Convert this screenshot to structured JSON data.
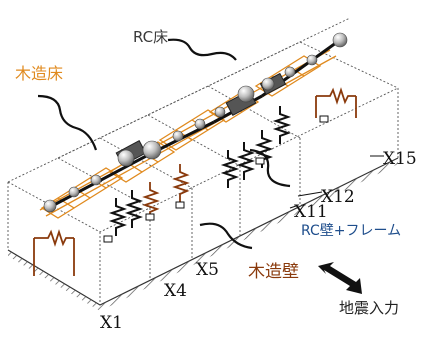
{
  "labels": {
    "rc_floor": "RC床",
    "wood_floor": "木造床",
    "rc_wall_frame": "RC壁+フレーム",
    "wood_wall": "木造壁",
    "seismic_input": "地震入力"
  },
  "grid_lines": {
    "x1": "X1",
    "x4": "X4",
    "x5": "X5",
    "x11": "X11",
    "x12": "X12",
    "x15": "X15"
  },
  "colors": {
    "wood_floor": "#e08a1e",
    "wood_wall": "#8a3a0c",
    "rc_wall": "#1f4e8c",
    "rc_element": "#111111",
    "node": "#9a9a9a"
  }
}
